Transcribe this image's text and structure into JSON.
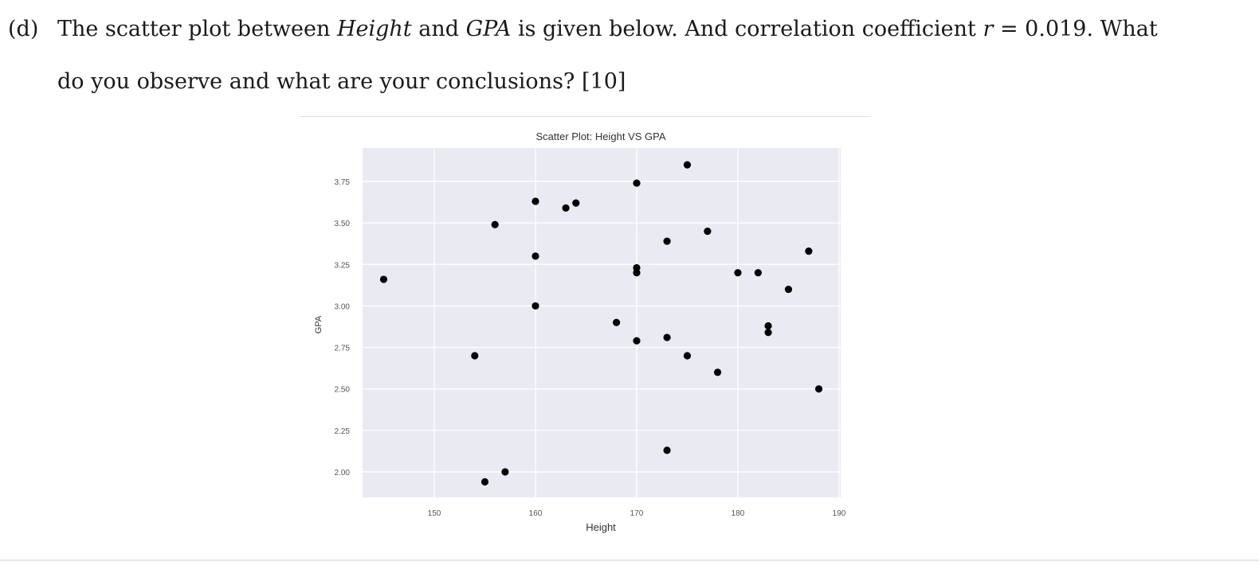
{
  "question": {
    "label": "(d)",
    "line1_parts": [
      "The scatter plot between ",
      "Height",
      " and ",
      "GPA",
      " is given below.  And correlation coefficient ",
      "r",
      " = 0.019.  What"
    ],
    "line2": "do you observe and what are your conclusions? [10]",
    "correlation_r": 0.019,
    "marks": 10
  },
  "colors": {
    "plot_background": "#eaeaf2",
    "grid": "#ffffff",
    "marker": "#000000",
    "tick_text": "#555555"
  },
  "chart_data": {
    "type": "scatter",
    "title": "Scatter Plot: Height VS GPA",
    "xlabel": "Height",
    "ylabel": "GPA",
    "xlim": [
      143,
      190
    ],
    "ylim": [
      1.89,
      3.91
    ],
    "xticks": [
      150,
      160,
      170,
      180,
      190
    ],
    "xtick_labels": [
      "150",
      "160",
      "170",
      "180",
      "190"
    ],
    "yticks": [
      2.0,
      2.25,
      2.5,
      2.75,
      3.0,
      3.25,
      3.5,
      3.75
    ],
    "ytick_labels": [
      "2.00",
      "2.25",
      "2.50",
      "2.75",
      "3.00",
      "3.25",
      "3.50",
      "3.75"
    ],
    "grid": true,
    "legend": null,
    "series": [
      {
        "name": "Height vs GPA",
        "points": [
          {
            "x": 145,
            "y": 3.16
          },
          {
            "x": 154,
            "y": 2.7
          },
          {
            "x": 155,
            "y": 1.94
          },
          {
            "x": 156,
            "y": 3.49
          },
          {
            "x": 157,
            "y": 2.0
          },
          {
            "x": 160,
            "y": 3.63
          },
          {
            "x": 160,
            "y": 3.3
          },
          {
            "x": 160,
            "y": 3.0
          },
          {
            "x": 163,
            "y": 3.59
          },
          {
            "x": 164,
            "y": 3.62
          },
          {
            "x": 168,
            "y": 2.9
          },
          {
            "x": 170,
            "y": 3.74
          },
          {
            "x": 170,
            "y": 3.23
          },
          {
            "x": 170,
            "y": 3.2
          },
          {
            "x": 170,
            "y": 2.79
          },
          {
            "x": 173,
            "y": 3.39
          },
          {
            "x": 173,
            "y": 2.81
          },
          {
            "x": 173,
            "y": 2.13
          },
          {
            "x": 175,
            "y": 3.85
          },
          {
            "x": 175,
            "y": 2.7
          },
          {
            "x": 177,
            "y": 3.45
          },
          {
            "x": 178,
            "y": 2.6
          },
          {
            "x": 180,
            "y": 3.2
          },
          {
            "x": 182,
            "y": 3.2
          },
          {
            "x": 183,
            "y": 2.88
          },
          {
            "x": 183,
            "y": 2.84
          },
          {
            "x": 185,
            "y": 3.1
          },
          {
            "x": 187,
            "y": 3.33
          },
          {
            "x": 188,
            "y": 2.5
          }
        ]
      }
    ]
  }
}
